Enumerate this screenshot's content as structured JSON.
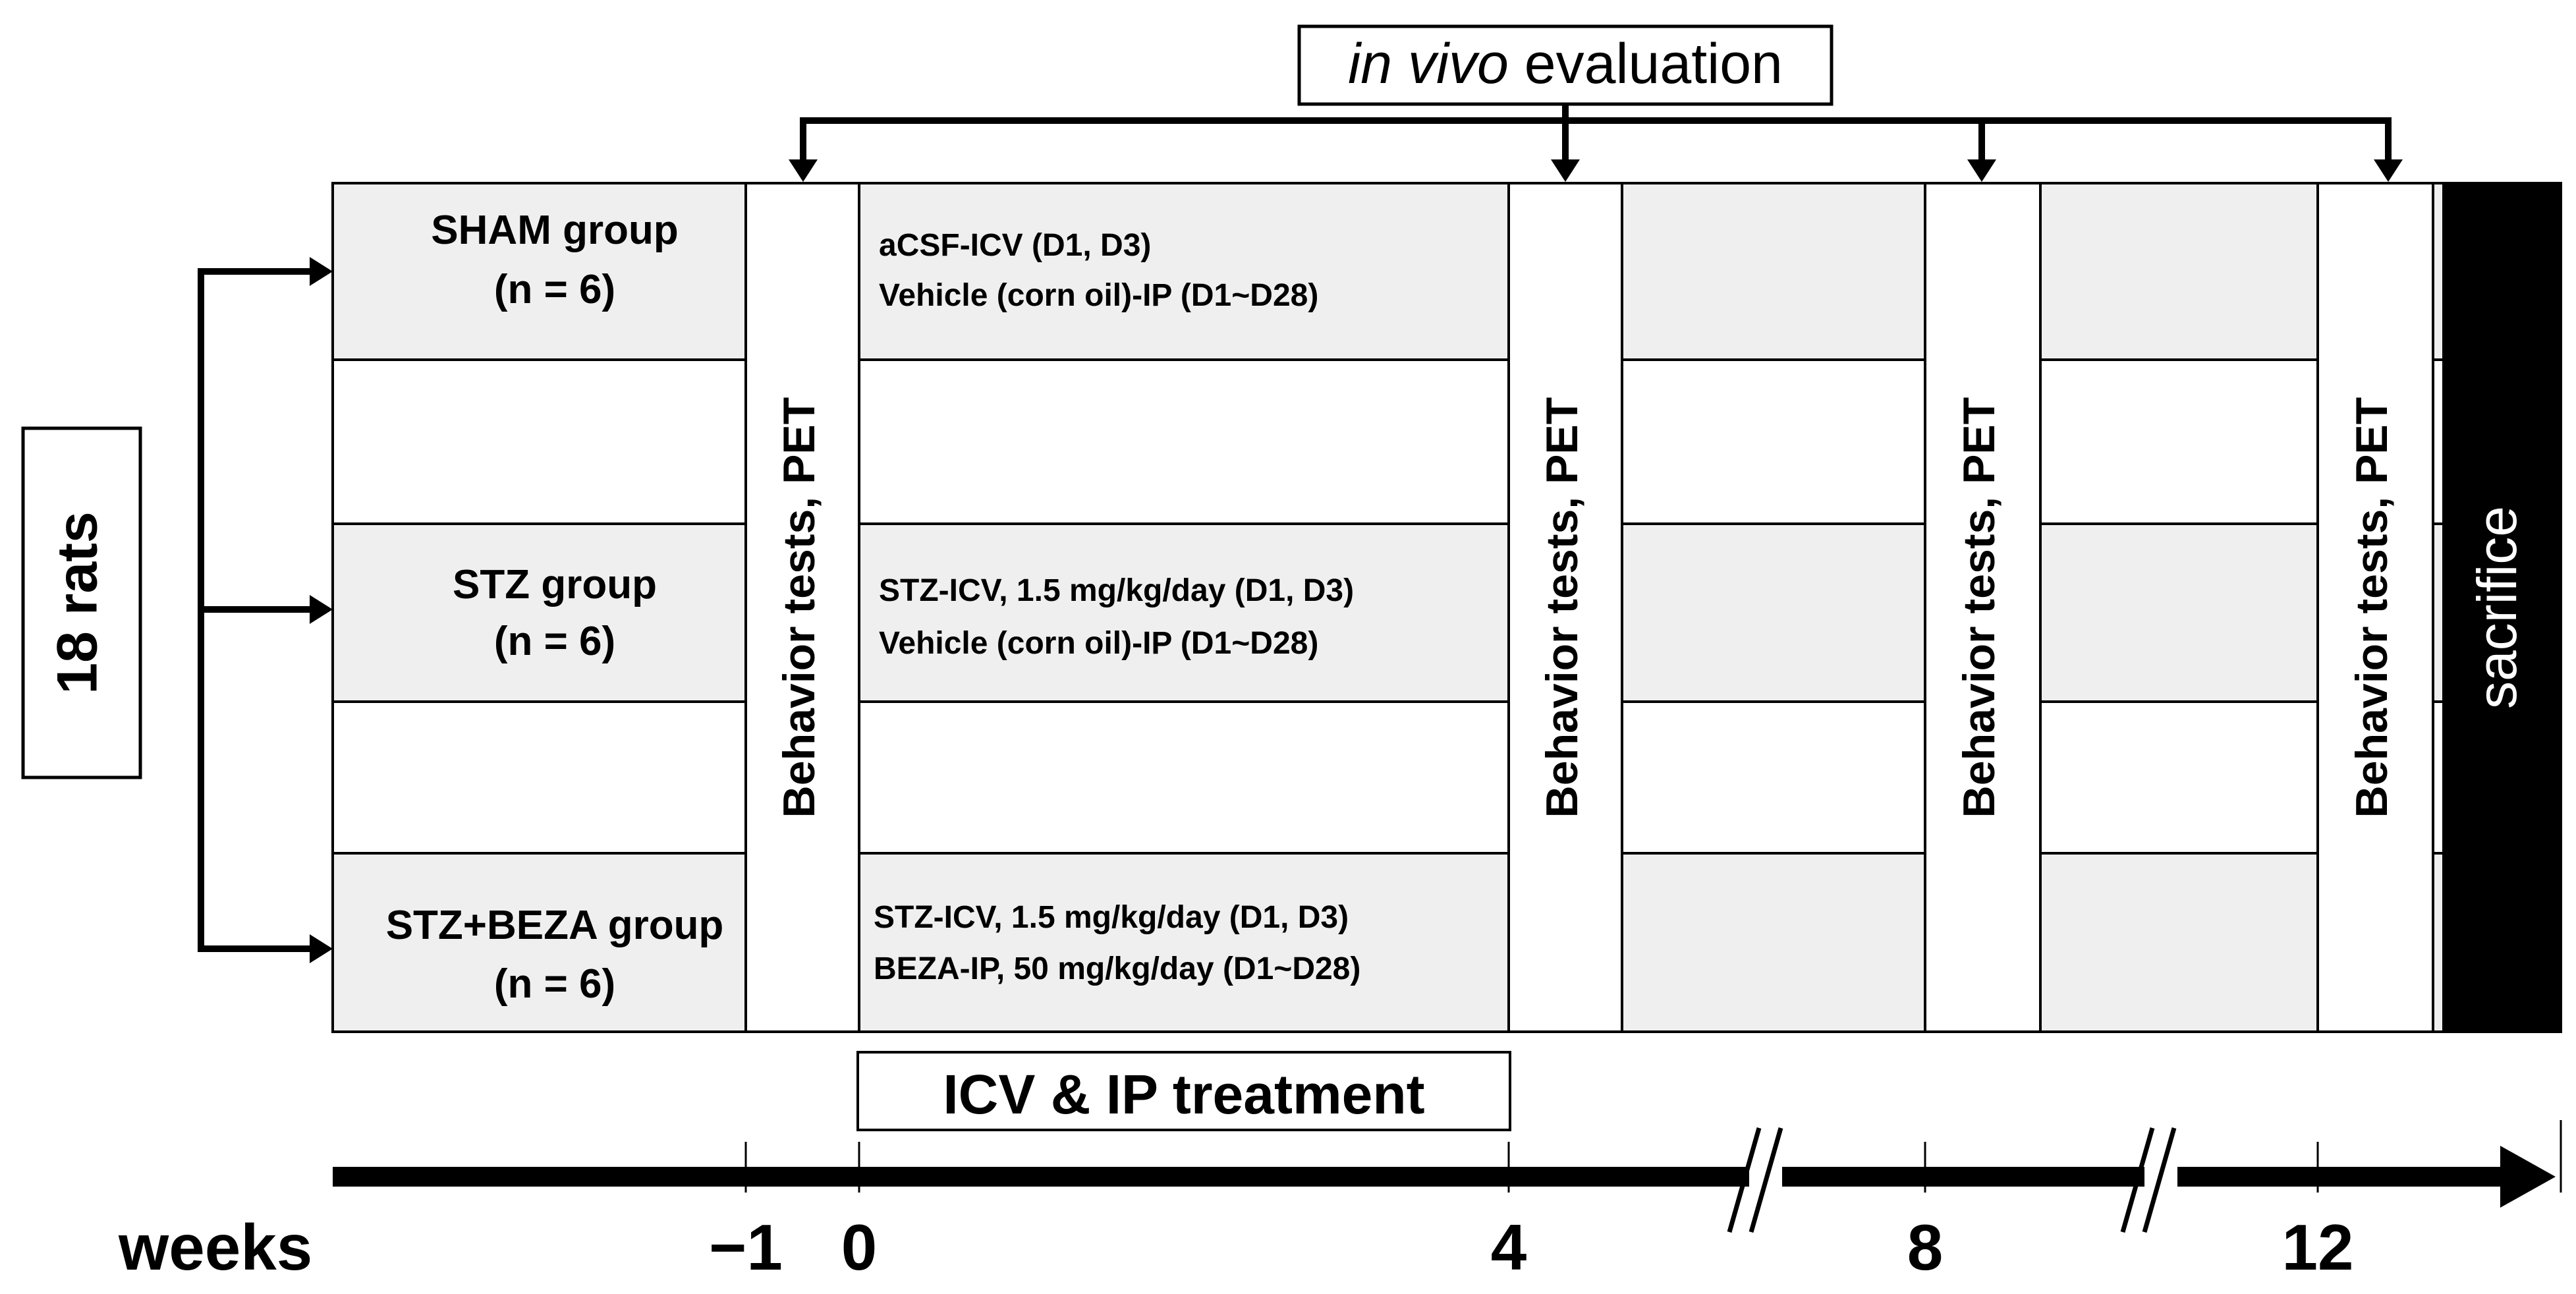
{
  "title": "in vivo evaluation",
  "title_parts": {
    "italic": "in vivo",
    "rest": " evaluation"
  },
  "rats_label": "18 rats",
  "groups": [
    {
      "name": "SHAM group",
      "n": "(n = 6)",
      "treatment_line1": "aCSF-ICV (D1, D3)",
      "treatment_line2": "Vehicle (corn oil)-IP (D1~D28)"
    },
    {
      "name": "STZ group",
      "n": "(n = 6)",
      "treatment_line1": "STZ-ICV, 1.5 mg/kg/day (D1, D3)",
      "treatment_line2": "Vehicle (corn oil)-IP (D1~D28)"
    },
    {
      "name": "STZ+BEZA group",
      "n": "(n = 6)",
      "treatment_line1": "STZ-ICV, 1.5 mg/kg/day (D1, D3)",
      "treatment_line2": "BEZA-IP, 50 mg/kg/day (D1~D28)"
    }
  ],
  "behavior_label": "Behavior tests, PET",
  "sacrifice_label": "sacrifice",
  "treatment_banner": "ICV & IP treatment",
  "timeline": {
    "axis_label": "weeks",
    "ticks": [
      "−1",
      "0",
      "4",
      "8",
      "12"
    ]
  },
  "colors": {
    "shade": "#efefef",
    "line": "#000000",
    "background": "#ffffff"
  }
}
